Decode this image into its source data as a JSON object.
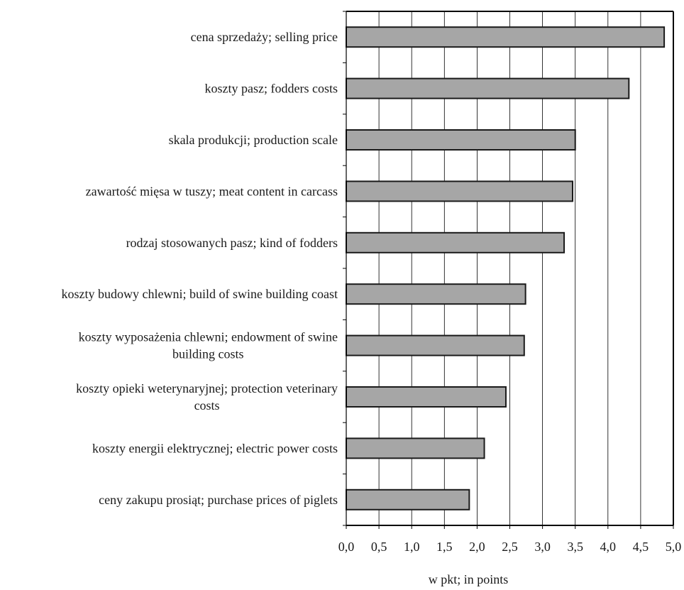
{
  "chart_data": {
    "type": "bar",
    "orientation": "horizontal",
    "categories": [
      [
        "cena sprzedaży; selling price"
      ],
      [
        "koszty pasz; fodders costs"
      ],
      [
        "skala produkcji; production scale"
      ],
      [
        "zawartość mięsa w tuszy; meat content in carcass"
      ],
      [
        "rodzaj stosowanych pasz; kind of fodders"
      ],
      [
        "koszty budowy chlewni; build of swine building coast"
      ],
      [
        "koszty wyposażenia chlewni; endowment of swine",
        "building  costs"
      ],
      [
        "koszty opieki weterynaryjnej; protection veterinary",
        "costs"
      ],
      [
        "koszty energii elektrycznej;  electric power costs"
      ],
      [
        "ceny zakupu prosiąt; purchase prices of piglets"
      ]
    ],
    "values": [
      4.86,
      4.32,
      3.5,
      3.46,
      3.33,
      2.74,
      2.72,
      2.44,
      2.11,
      1.88
    ],
    "xlim": [
      0,
      5
    ],
    "xticks": [
      "0,0",
      "0,5",
      "1,0",
      "1,5",
      "2,0",
      "2,5",
      "3,0",
      "3,5",
      "4,0",
      "4,5",
      "5,0"
    ],
    "xlabel": "w pkt; in points",
    "ylabel": "",
    "title": "",
    "grid": "vertical",
    "colors": {
      "bar_fill": "#a6a6a6",
      "bar_stroke": "#1a1a1a",
      "grid": "#000000"
    }
  }
}
